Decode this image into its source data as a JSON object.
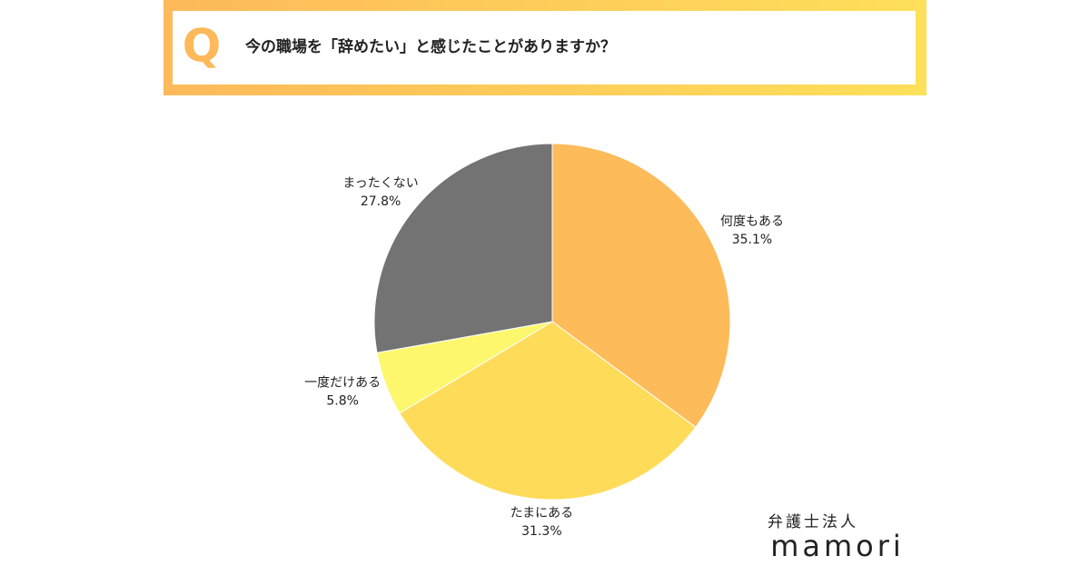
{
  "header": {
    "letter": "Q"
  },
  "chart_data": {
    "type": "pie",
    "title": "今の職場を「辞めたい」と感じたことがありますか？",
    "categories": [
      "何度もある",
      "たまにある",
      "一度だけある",
      "まったくない"
    ],
    "values": [
      35.1,
      31.3,
      5.8,
      27.8
    ],
    "value_labels": [
      "35.1%",
      "31.3%",
      "5.8%",
      "27.8%"
    ],
    "colors": [
      "#fdbb5a",
      "#fedc5a",
      "#fdf76e",
      "#737373"
    ]
  },
  "logo": {
    "subtitle": "弁護士法人",
    "name": "mamori"
  }
}
